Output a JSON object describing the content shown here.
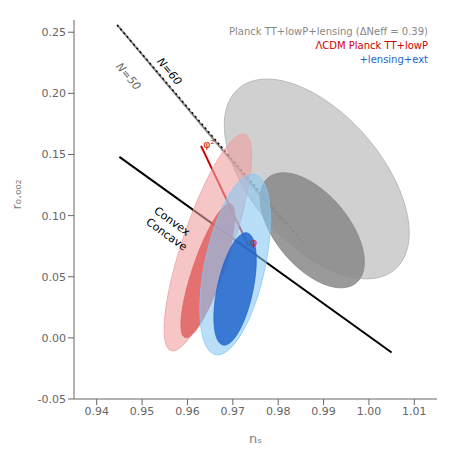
{
  "chart_data": {
    "type": "ellipse",
    "xlabel": "nₛ",
    "ylabel": "r₀.₀₀₂",
    "xlim": [
      0.935,
      1.015
    ],
    "ylim": [
      -0.05,
      0.26
    ],
    "xticks": [
      0.94,
      0.95,
      0.96,
      0.97,
      0.98,
      0.99,
      {
        "value": 1.0,
        "label": "1.00"
      },
      1.01
    ],
    "yticks": [
      -0.05,
      {
        "value": 0,
        "label": "0.00"
      },
      0.05,
      {
        "value": 0.1,
        "label": "0.10"
      },
      0.15,
      {
        "value": 0.2,
        "label": "0.20"
      },
      0.25
    ],
    "series": [
      {
        "name": "Planck TT+lowP+lensing (ΔNeff = 0.39)",
        "color": "#888888",
        "colors": [
          "#b0b0b0",
          "#888888"
        ],
        "ellipses": [
          {
            "cx": 0.9885,
            "cy": 0.13,
            "wx": 0.034,
            "wy": 0.165,
            "angle": 8
          },
          {
            "cx": 0.9875,
            "cy": 0.088,
            "wx": 0.019,
            "wy": 0.095,
            "angle": 8
          }
        ]
      },
      {
        "name": "ΛCDM Planck TT+lowP",
        "color": "#cc0000",
        "colors": [
          "#f0a0a0",
          "#e06060"
        ],
        "ellipses": [
          {
            "cx": 0.9645,
            "cy": 0.078,
            "wx": 0.0115,
            "wy": 0.178,
            "angle": -5
          },
          {
            "cx": 0.9645,
            "cy": 0.055,
            "wx": 0.007,
            "wy": 0.11,
            "angle": -5
          }
        ]
      },
      {
        "name": "+lensing+ext",
        "color": "#2266cc",
        "colors": [
          "#88c8f4",
          "#2266cc"
        ],
        "ellipses": [
          {
            "cx": 0.9705,
            "cy": 0.06,
            "wx": 0.0135,
            "wy": 0.148,
            "angle": -3
          },
          {
            "cx": 0.9705,
            "cy": 0.04,
            "wx": 0.008,
            "wy": 0.092,
            "angle": -3
          }
        ]
      }
    ],
    "lines": [
      {
        "x": [
          0.945,
          1.005
        ],
        "y": [
          0.148,
          -0.012
        ],
        "color": "black",
        "line_style": "solid",
        "labels": [
          {
            "text": "Convex\nConcave",
            "x": 0.9535,
            "y": 0.108,
            "color": "black"
          }
        ]
      },
      {
        "x": [
          0.9445,
          0.9815
        ],
        "y": [
          0.256,
          0.093
        ],
        "color": "#888888",
        "line_style": "solid",
        "labels": [
          {
            "text": "N=50",
            "x": 0.9455,
            "y": 0.226,
            "color": "#666666"
          }
        ]
      },
      {
        "x": [
          0.9445,
          0.9855
        ],
        "y": [
          0.256,
          0.078
        ],
        "color": "black",
        "line_style": "dotted",
        "labels": [
          {
            "text": "N=60",
            "x": 0.9545,
            "y": 0.23,
            "color": "black"
          }
        ]
      },
      {
        "x": [
          0.963,
          0.9735
        ],
        "y": [
          0.157,
          0.075
        ],
        "color": "#cc0000",
        "line_style": "solid",
        "labels": [
          {
            "text": "φ²",
            "x": 0.9635,
            "y": 0.162,
            "color": "#cc2222"
          },
          {
            "text": "φ",
            "x": 0.9738,
            "y": 0.082,
            "color": "#cc2222"
          }
        ]
      }
    ]
  }
}
